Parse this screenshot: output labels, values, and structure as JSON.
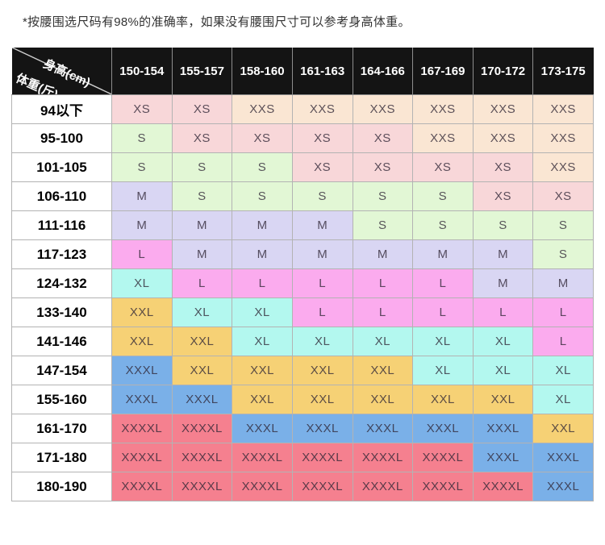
{
  "note": "*按腰围选尺码有98%的准确率，如果没有腰围尺寸可以参考身高体重。",
  "table": {
    "corner": {
      "top_label": "身高(cm)",
      "bottom_label": "体重(斤)"
    },
    "height_columns": [
      "150-154",
      "155-157",
      "158-160",
      "161-163",
      "164-166",
      "167-169",
      "170-172",
      "173-175"
    ],
    "weight_rows": [
      "94以下",
      "95-100",
      "101-105",
      "106-110",
      "111-116",
      "117-123",
      "124-132",
      "133-140",
      "141-146",
      "147-154",
      "155-160",
      "161-170",
      "171-180",
      "180-190"
    ],
    "cells": [
      [
        "XS",
        "XS",
        "XXS",
        "XXS",
        "XXS",
        "XXS",
        "XXS",
        "XXS"
      ],
      [
        "S",
        "XS",
        "XS",
        "XS",
        "XS",
        "XXS",
        "XXS",
        "XXS"
      ],
      [
        "S",
        "S",
        "S",
        "XS",
        "XS",
        "XS",
        "XS",
        "XXS"
      ],
      [
        "M",
        "S",
        "S",
        "S",
        "S",
        "S",
        "XS",
        "XS"
      ],
      [
        "M",
        "M",
        "M",
        "M",
        "S",
        "S",
        "S",
        "S"
      ],
      [
        "L",
        "M",
        "M",
        "M",
        "M",
        "M",
        "M",
        "S"
      ],
      [
        "XL",
        "L",
        "L",
        "L",
        "L",
        "L",
        "M",
        "M"
      ],
      [
        "XXL",
        "XL",
        "XL",
        "L",
        "L",
        "L",
        "L",
        "L"
      ],
      [
        "XXL",
        "XXL",
        "XL",
        "XL",
        "XL",
        "XL",
        "XL",
        "L"
      ],
      [
        "XXXL",
        "XXL",
        "XXL",
        "XXL",
        "XXL",
        "XL",
        "XL",
        "XL"
      ],
      [
        "XXXL",
        "XXXL",
        "XXL",
        "XXL",
        "XXL",
        "XXL",
        "XXL",
        "XL"
      ],
      [
        "XXXXL",
        "XXXXL",
        "XXXL",
        "XXXL",
        "XXXL",
        "XXXL",
        "XXXL",
        "XXL"
      ],
      [
        "XXXXL",
        "XXXXL",
        "XXXXL",
        "XXXXL",
        "XXXXL",
        "XXXXL",
        "XXXL",
        "XXXL"
      ],
      [
        "XXXXL",
        "XXXXL",
        "XXXXL",
        "XXXXL",
        "XXXXL",
        "XXXXL",
        "XXXXL",
        "XXXL"
      ]
    ],
    "size_colors": {
      "XXS": "#fae6d3",
      "XS": "#f8d7d9",
      "S": "#e2f7d5",
      "M": "#d9d6f3",
      "L": "#fbabee",
      "XL": "#b3f8ef",
      "XXL": "#f6d175",
      "XXXL": "#7ab0e8",
      "XXXXL": "#f5808f"
    },
    "header_bg": "#141414",
    "grid_color": "#b3b3b3"
  }
}
